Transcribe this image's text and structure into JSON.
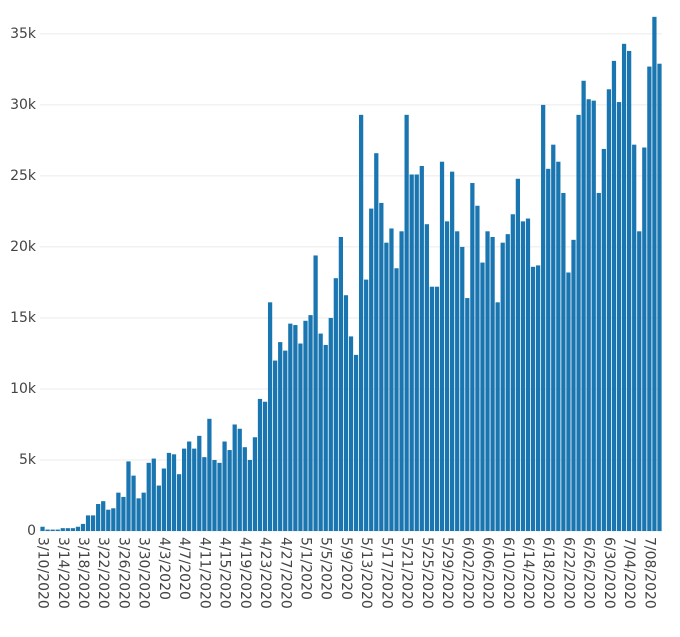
{
  "chart_data": {
    "type": "bar",
    "categories": [
      "3/10/2020",
      null,
      null,
      null,
      "3/14/2020",
      null,
      null,
      null,
      "3/18/2020",
      null,
      null,
      null,
      "3/22/2020",
      null,
      null,
      null,
      "3/26/2020",
      null,
      null,
      null,
      "3/30/2020",
      null,
      null,
      null,
      "4/3/2020",
      null,
      null,
      null,
      "4/7/2020",
      null,
      null,
      null,
      "4/11/2020",
      null,
      null,
      null,
      "4/15/2020",
      null,
      null,
      null,
      "4/19/2020",
      null,
      null,
      null,
      "4/23/2020",
      null,
      null,
      null,
      "4/27/2020",
      null,
      null,
      null,
      "5/1/2020",
      null,
      null,
      null,
      "5/5/2020",
      null,
      null,
      null,
      "5/9/2020",
      null,
      null,
      null,
      "5/13/2020",
      null,
      null,
      null,
      "5/17/2020",
      null,
      null,
      null,
      "5/21/2020",
      null,
      null,
      null,
      "5/25/2020",
      null,
      null,
      null,
      "5/29/2020",
      null,
      null,
      null,
      "6/02/2020",
      null,
      null,
      null,
      "6/06/2020",
      null,
      null,
      null,
      "6/10/2020",
      null,
      null,
      null,
      "6/14/2020",
      null,
      null,
      null,
      "6/18/2020",
      null,
      null,
      null,
      "6/22/2020",
      null,
      null,
      null,
      "6/26/2020",
      null,
      null,
      null,
      "6/30/2020",
      null,
      null,
      null,
      "7/04/2020",
      null,
      null,
      null,
      "7/08/2020",
      null,
      null
    ],
    "values": [
      300,
      100,
      100,
      100,
      200,
      200,
      200,
      300,
      500,
      1100,
      1100,
      1900,
      2100,
      1500,
      1600,
      2700,
      2400,
      4900,
      3900,
      2300,
      2700,
      4800,
      5100,
      3200,
      4400,
      5500,
      5400,
      4000,
      5800,
      6300,
      5800,
      6700,
      5200,
      7900,
      5000,
      4800,
      6300,
      5700,
      7500,
      7200,
      5900,
      5000,
      6600,
      9300,
      9100,
      16100,
      12000,
      13300,
      12700,
      14600,
      14500,
      13200,
      14800,
      15200,
      19400,
      13900,
      13100,
      15000,
      17800,
      20700,
      16600,
      13700,
      12400,
      29300,
      17700,
      22700,
      26600,
      23100,
      20300,
      21300,
      18500,
      21100,
      29300,
      25100,
      25100,
      25700,
      21600,
      17200,
      17200,
      26000,
      21800,
      25300,
      21100,
      20000,
      16400,
      24500,
      22900,
      18900,
      21100,
      20700,
      16100,
      20300,
      20900,
      22300,
      24800,
      21800,
      22000,
      18600,
      18700,
      30000,
      25500,
      27200,
      26000,
      23800,
      18200,
      20500,
      29300,
      31700,
      30400,
      30300,
      23800,
      26900,
      31100,
      33100,
      30200,
      34300,
      33800,
      27200,
      21100,
      27000,
      32700,
      36200,
      32900
    ],
    "color": "#1a76b1",
    "ylim": [
      0,
      36400
    ],
    "yticks": [
      0,
      {
        "value": 5000,
        "label": "5k"
      },
      {
        "value": 10000,
        "label": "10k"
      },
      {
        "value": 15000,
        "label": "15k"
      },
      {
        "value": 20000,
        "label": "20k"
      },
      {
        "value": 25000,
        "label": "25k"
      },
      {
        "value": 30000,
        "label": "30k"
      },
      {
        "value": 35000,
        "label": "35k"
      }
    ],
    "grid": true
  }
}
